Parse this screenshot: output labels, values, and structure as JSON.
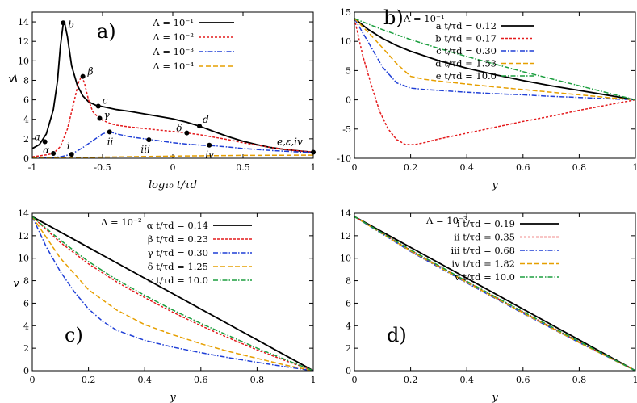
{
  "chart_data": [
    {
      "id": "a",
      "type": "line",
      "panel_label": "a)",
      "xlabel": "log₁₀ t/τd",
      "ylabel": "Δ",
      "xlim": [
        -1,
        1
      ],
      "ylim": [
        0,
        15
      ],
      "xticks": [
        -1,
        -0.5,
        0,
        0.5,
        1
      ],
      "xtick_labels": [
        "-1",
        "-0.5",
        "0",
        "0.5",
        "1"
      ],
      "yticks": [
        0,
        2,
        4,
        6,
        8,
        10,
        12,
        14
      ],
      "ytick_labels": [
        "0",
        "2",
        "4",
        "6",
        "8",
        "10",
        "12",
        "14"
      ],
      "legend_position": "top-right",
      "series": [
        {
          "name": "Λ = 10⁻¹",
          "color": "#000000",
          "dash": "",
          "x": [
            -1,
            -0.95,
            -0.9,
            -0.85,
            -0.82,
            -0.8,
            -0.78,
            -0.77,
            -0.75,
            -0.72,
            -0.68,
            -0.64,
            -0.6,
            -0.55,
            -0.5,
            -0.4,
            -0.3,
            -0.2,
            -0.1,
            0,
            0.1,
            0.2,
            0.3,
            0.4,
            0.5,
            0.6,
            0.7,
            0.8,
            0.9,
            1
          ],
          "y": [
            1.0,
            1.4,
            2.5,
            5.0,
            8.0,
            11.5,
            13.8,
            13.9,
            12.5,
            9.5,
            7.5,
            6.4,
            5.8,
            5.45,
            5.3,
            5.0,
            4.8,
            4.55,
            4.3,
            4.05,
            3.7,
            3.25,
            2.7,
            2.2,
            1.75,
            1.4,
            1.1,
            0.9,
            0.75,
            0.62
          ]
        },
        {
          "name": "Λ = 10⁻²",
          "color": "#e41a1c",
          "dash": "3,2",
          "x": [
            -1,
            -0.9,
            -0.85,
            -0.8,
            -0.75,
            -0.7,
            -0.67,
            -0.65,
            -0.63,
            -0.6,
            -0.57,
            -0.53,
            -0.5,
            -0.45,
            -0.4,
            -0.3,
            -0.2,
            -0.1,
            0,
            0.1,
            0.2,
            0.3,
            0.4,
            0.5,
            0.6,
            0.7,
            0.8,
            0.9,
            1
          ],
          "y": [
            0.15,
            0.35,
            0.5,
            1.2,
            3.0,
            6.0,
            7.8,
            8.4,
            7.8,
            6.0,
            4.8,
            4.2,
            3.9,
            3.6,
            3.4,
            3.2,
            3.05,
            2.9,
            2.75,
            2.6,
            2.4,
            2.15,
            1.9,
            1.6,
            1.35,
            1.1,
            0.9,
            0.75,
            0.65
          ]
        },
        {
          "name": "Λ = 10⁻³",
          "color": "#1f3fd6",
          "dash": "6,2,1.5,2",
          "x": [
            -1,
            -0.9,
            -0.8,
            -0.74,
            -0.7,
            -0.65,
            -0.6,
            -0.55,
            -0.5,
            -0.46,
            -0.44,
            -0.4,
            -0.3,
            -0.2,
            -0.15,
            -0.1,
            0,
            0.1,
            0.2,
            0.28,
            0.4,
            0.5,
            0.6,
            0.7,
            0.8,
            0.9,
            1
          ],
          "y": [
            0.02,
            0.05,
            0.15,
            0.35,
            0.6,
            1.0,
            1.5,
            2.0,
            2.5,
            2.7,
            2.7,
            2.5,
            2.2,
            2.0,
            1.9,
            1.8,
            1.6,
            1.45,
            1.35,
            1.3,
            1.15,
            1.0,
            0.9,
            0.8,
            0.72,
            0.65,
            0.6
          ]
        },
        {
          "name": "Λ = 10⁻⁴",
          "color": "#e69f00",
          "dash": "6,3",
          "x": [
            -1,
            -0.5,
            0,
            0.5,
            1
          ],
          "y": [
            0.02,
            0.12,
            0.22,
            0.3,
            0.32
          ]
        }
      ],
      "markers": [
        {
          "label": "a",
          "x": -0.91,
          "y": 1.7
        },
        {
          "label": "b",
          "x": -0.78,
          "y": 13.9
        },
        {
          "label": "c",
          "x": -0.53,
          "y": 5.35
        },
        {
          "label": "d",
          "x": 0.19,
          "y": 3.3
        },
        {
          "label": "α",
          "x": -0.85,
          "y": 0.5
        },
        {
          "label": "β",
          "x": -0.64,
          "y": 8.4
        },
        {
          "label": "γ",
          "x": -0.52,
          "y": 4.1
        },
        {
          "label": "δ",
          "x": 0.1,
          "y": 2.6
        },
        {
          "label": "i",
          "x": -0.72,
          "y": 0.4
        },
        {
          "label": "ii",
          "x": -0.45,
          "y": 2.7
        },
        {
          "label": "iii",
          "x": -0.17,
          "y": 1.9
        },
        {
          "label": "iv",
          "x": 0.26,
          "y": 1.35
        },
        {
          "label": "e,ε,iv",
          "x": 1,
          "y": 0.62
        }
      ]
    },
    {
      "id": "b",
      "type": "line",
      "panel_label": "b)",
      "title": "Λ = 10⁻¹",
      "xlabel": "y",
      "ylabel": "v",
      "xlim": [
        0,
        1
      ],
      "ylim": [
        -10,
        15
      ],
      "xticks": [
        0,
        0.2,
        0.4,
        0.6,
        0.8,
        1
      ],
      "xtick_labels": [
        "0",
        "0.2",
        "0.4",
        "0.6",
        "0.8",
        "1"
      ],
      "yticks": [
        -10,
        -5,
        0,
        5,
        10,
        15
      ],
      "ytick_labels": [
        "-10",
        "-5",
        "0",
        "5",
        "10",
        "15"
      ],
      "legend_position": "top-right",
      "series": [
        {
          "name": "a t/τd = 0.12",
          "color": "#000000",
          "dash": "",
          "x": [
            0,
            0.05,
            0.1,
            0.15,
            0.2,
            0.3,
            0.4,
            0.5,
            0.6,
            0.7,
            0.8,
            0.9,
            1
          ],
          "y": [
            13.9,
            12.0,
            10.5,
            9.3,
            8.3,
            6.7,
            5.4,
            4.3,
            3.3,
            2.4,
            1.6,
            0.8,
            0
          ]
        },
        {
          "name": "b t/τd = 0.17",
          "color": "#e41a1c",
          "dash": "3,2",
          "x": [
            0,
            0.03,
            0.06,
            0.09,
            0.12,
            0.15,
            0.18,
            0.2,
            0.22,
            0.25,
            0.3,
            0.4,
            0.5,
            0.6,
            0.7,
            0.8,
            0.9,
            1
          ],
          "y": [
            13.9,
            7.5,
            2.5,
            -2.0,
            -5.0,
            -6.8,
            -7.6,
            -7.7,
            -7.6,
            -7.3,
            -6.7,
            -5.7,
            -4.7,
            -3.7,
            -2.8,
            -1.8,
            -0.9,
            0
          ]
        },
        {
          "name": "c t/τd = 0.30",
          "color": "#1f3fd6",
          "dash": "6,2,1.5,2",
          "x": [
            0,
            0.05,
            0.1,
            0.15,
            0.2,
            0.25,
            0.3,
            0.4,
            0.5,
            0.6,
            0.7,
            0.8,
            0.9,
            1
          ],
          "y": [
            13.9,
            9.8,
            5.6,
            2.9,
            2.0,
            1.75,
            1.6,
            1.3,
            1.05,
            0.85,
            0.6,
            0.4,
            0.2,
            0
          ]
        },
        {
          "name": "d t/τd = 1.53",
          "color": "#e69f00",
          "dash": "6,3",
          "x": [
            0,
            0.05,
            0.1,
            0.15,
            0.2,
            0.25,
            0.3,
            0.4,
            0.5,
            0.6,
            0.7,
            0.8,
            0.9,
            1
          ],
          "y": [
            13.9,
            11.5,
            8.9,
            6.2,
            4.0,
            3.5,
            3.2,
            2.7,
            2.2,
            1.75,
            1.3,
            0.85,
            0.4,
            0
          ]
        },
        {
          "name": "e t/τd = 10.0",
          "color": "#1b9e3e",
          "dash": "6,2,1.5,2",
          "x": [
            0,
            0.1,
            0.2,
            0.3,
            0.4,
            0.5,
            0.6,
            0.7,
            0.8,
            0.9,
            1
          ],
          "y": [
            13.9,
            12.0,
            10.3,
            8.8,
            7.4,
            6.1,
            4.8,
            3.6,
            2.4,
            1.2,
            0
          ]
        }
      ]
    },
    {
      "id": "c",
      "type": "line",
      "panel_label": "c)",
      "title": "Λ = 10⁻²",
      "xlabel": "y",
      "ylabel": "v",
      "xlim": [
        0,
        1
      ],
      "ylim": [
        0,
        14
      ],
      "xticks": [
        0,
        0.2,
        0.4,
        0.6,
        0.8,
        1
      ],
      "xtick_labels": [
        "0",
        "0.2",
        "0.4",
        "0.6",
        "0.8",
        "1"
      ],
      "yticks": [
        0,
        2,
        4,
        6,
        8,
        10,
        12,
        14
      ],
      "ytick_labels": [
        "0",
        "2",
        "4",
        "6",
        "8",
        "10",
        "12",
        "14"
      ],
      "legend_position": "top-right",
      "series": [
        {
          "name": "α t/τd = 0.14",
          "color": "#000000",
          "dash": "",
          "x": [
            0,
            1
          ],
          "y": [
            13.7,
            0
          ]
        },
        {
          "name": "β t/τd = 0.23",
          "color": "#e41a1c",
          "dash": "3,2",
          "x": [
            0,
            0.1,
            0.2,
            0.3,
            0.4,
            0.5,
            0.6,
            0.7,
            0.8,
            0.9,
            1
          ],
          "y": [
            13.7,
            11.4,
            9.5,
            7.9,
            6.5,
            5.2,
            4.0,
            2.9,
            1.85,
            0.9,
            0
          ]
        },
        {
          "name": "γ t/τd = 0.30",
          "color": "#1f3fd6",
          "dash": "6,2,1.5,2",
          "x": [
            0,
            0.05,
            0.1,
            0.15,
            0.2,
            0.25,
            0.3,
            0.4,
            0.5,
            0.6,
            0.7,
            0.8,
            0.9,
            1
          ],
          "y": [
            13.7,
            11.0,
            8.8,
            7.0,
            5.5,
            4.4,
            3.6,
            2.7,
            2.1,
            1.6,
            1.15,
            0.75,
            0.35,
            0
          ]
        },
        {
          "name": "δ t/τd = 1.25",
          "color": "#e69f00",
          "dash": "6,3",
          "x": [
            0,
            0.1,
            0.2,
            0.3,
            0.4,
            0.5,
            0.6,
            0.7,
            0.8,
            0.9,
            1
          ],
          "y": [
            13.7,
            10.0,
            7.2,
            5.4,
            4.1,
            3.2,
            2.4,
            1.7,
            1.1,
            0.5,
            0
          ]
        },
        {
          "name": "ϵ t/τd = 10.0",
          "color": "#1b9e3e",
          "dash": "6,2,1.5,2",
          "x": [
            0,
            0.1,
            0.2,
            0.3,
            0.4,
            0.5,
            0.6,
            0.7,
            0.8,
            0.9,
            1
          ],
          "y": [
            13.7,
            11.6,
            9.7,
            8.1,
            6.7,
            5.4,
            4.2,
            3.1,
            2.0,
            1.0,
            0
          ]
        }
      ]
    },
    {
      "id": "d",
      "type": "line",
      "panel_label": "d)",
      "title": "Λ = 10⁻³",
      "xlabel": "y",
      "ylabel": "v",
      "xlim": [
        0,
        1
      ],
      "ylim": [
        0,
        14
      ],
      "xticks": [
        0,
        0.2,
        0.4,
        0.6,
        0.8,
        1
      ],
      "xtick_labels": [
        "0",
        "0.2",
        "0.4",
        "0.6",
        "0.8",
        "1"
      ],
      "yticks": [
        0,
        2,
        4,
        6,
        8,
        10,
        12,
        14
      ],
      "ytick_labels": [
        "0",
        "2",
        "4",
        "6",
        "8",
        "10",
        "12",
        "14"
      ],
      "legend_position": "top-right",
      "series": [
        {
          "name": "i t/τd = 0.19",
          "color": "#000000",
          "dash": "",
          "x": [
            0,
            1
          ],
          "y": [
            13.7,
            0
          ]
        },
        {
          "name": "ii t/τd = 0.35",
          "color": "#e41a1c",
          "dash": "3,2",
          "x": [
            0,
            0.2,
            0.4,
            0.6,
            0.8,
            1
          ],
          "y": [
            13.7,
            10.7,
            7.9,
            5.2,
            2.55,
            0
          ]
        },
        {
          "name": "iii t/τd = 0.68",
          "color": "#1f3fd6",
          "dash": "6,2,1.5,2",
          "x": [
            0,
            0.2,
            0.4,
            0.6,
            0.8,
            1
          ],
          "y": [
            13.7,
            10.6,
            7.8,
            5.1,
            2.5,
            0
          ]
        },
        {
          "name": "iv t/τd = 1.82",
          "color": "#e69f00",
          "dash": "6,3",
          "x": [
            0,
            0.2,
            0.4,
            0.6,
            0.8,
            1
          ],
          "y": [
            13.7,
            10.65,
            7.85,
            5.15,
            2.5,
            0
          ]
        },
        {
          "name": "v t/τd = 10.0",
          "color": "#1b9e3e",
          "dash": "6,2,1.5,2",
          "x": [
            0,
            0.2,
            0.4,
            0.6,
            0.8,
            1
          ],
          "y": [
            13.7,
            10.75,
            7.95,
            5.25,
            2.6,
            0
          ]
        }
      ]
    }
  ]
}
